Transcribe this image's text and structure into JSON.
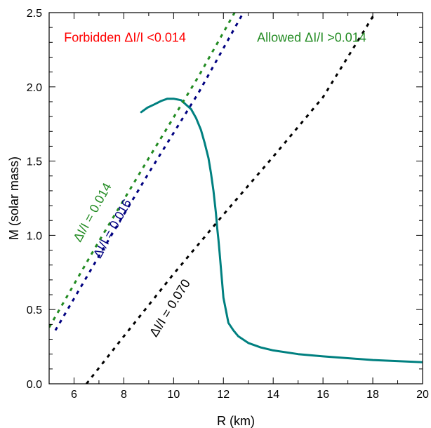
{
  "chart_data": {
    "type": "line",
    "title": "",
    "xlabel": "R (km)",
    "ylabel": "M (solar mass)",
    "xlim": [
      5,
      20
    ],
    "ylim": [
      0,
      2.5
    ],
    "x_ticks": [
      6,
      8,
      10,
      12,
      14,
      16,
      18,
      20
    ],
    "x_tick_labels": [
      "6",
      "8",
      "10",
      "12",
      "14",
      "16",
      "18",
      "20"
    ],
    "y_ticks": [
      0,
      0.5,
      1,
      1.5,
      2,
      2.5
    ],
    "y_tick_labels": [
      "0.0",
      "0.5",
      "1.0",
      "1.5",
      "2.0",
      "2.5"
    ],
    "grid": false,
    "series": [
      {
        "color": "#008080",
        "style": "solid",
        "x": [
          20.0,
          18.0,
          16.0,
          15.0,
          14.0,
          13.5,
          13.0,
          12.6,
          12.4,
          12.2,
          12.0,
          11.9,
          11.85,
          11.8,
          11.75,
          11.7,
          11.6,
          11.5,
          11.4,
          11.25,
          11.1,
          10.9,
          10.7,
          10.5,
          10.3,
          10.0,
          9.75,
          9.5,
          9.2,
          8.95,
          8.7
        ],
        "y": [
          0.145,
          0.16,
          0.185,
          0.2,
          0.225,
          0.245,
          0.275,
          0.32,
          0.36,
          0.41,
          0.58,
          0.78,
          0.88,
          0.97,
          1.05,
          1.15,
          1.3,
          1.42,
          1.52,
          1.62,
          1.71,
          1.79,
          1.85,
          1.88,
          1.91,
          1.92,
          1.92,
          1.905,
          1.88,
          1.86,
          1.83
        ]
      },
      {
        "color": "#228B22",
        "style": "dotted",
        "x": [
          5.0,
          7.0,
          9.0,
          11.0,
          12.45
        ],
        "y": [
          0.38,
          0.96,
          1.52,
          2.07,
          2.5
        ]
      },
      {
        "color": "#000080",
        "style": "dotted",
        "x": [
          5.25,
          7.0,
          9.0,
          11.0,
          12.8
        ],
        "y": [
          0.36,
          0.86,
          1.42,
          1.96,
          2.5
        ]
      },
      {
        "color": "#000000",
        "style": "dotted",
        "x": [
          6.5,
          8.0,
          10.0,
          12.0,
          14.0,
          16.0,
          18.1
        ],
        "y": [
          0.0,
          0.32,
          0.74,
          1.14,
          1.53,
          1.93,
          2.5
        ]
      }
    ],
    "annotations": [
      {
        "text": "Forbidden ΔI/I <0.014",
        "color": "#ff0000",
        "x": 5.6,
        "y": 2.305,
        "rotate": 0
      },
      {
        "text": "Allowed ΔI/I >0.014",
        "color": "#228B22",
        "x": 13.35,
        "y": 2.305,
        "rotate": 0
      },
      {
        "text": "ΔI/I = 0.014",
        "color": "#228B22",
        "x": 6.25,
        "y": 0.95,
        "rotate": -61
      },
      {
        "text": "ΔI/I = 0.016",
        "color": "#000080",
        "x": 7.05,
        "y": 0.84,
        "rotate": -61
      },
      {
        "text": "ΔI/I = 0.070",
        "color": "#000000",
        "x": 9.3,
        "y": 0.31,
        "rotate": -58
      }
    ]
  }
}
